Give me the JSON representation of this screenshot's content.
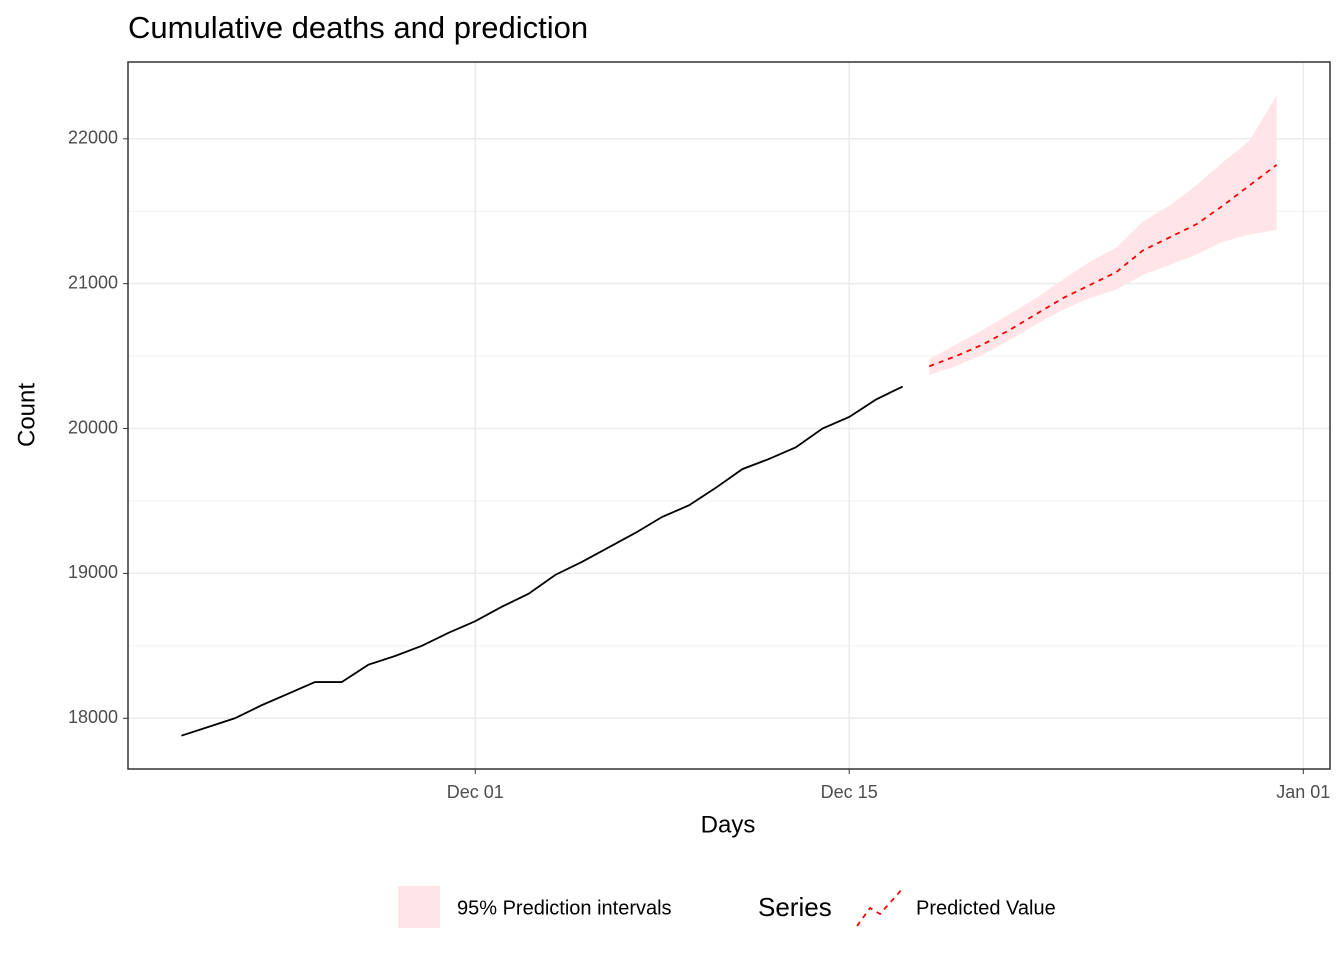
{
  "chart_data": {
    "type": "line",
    "title": "Cumulative deaths and prediction",
    "x_label": "Days",
    "y_label": "Count",
    "xlim": [
      "Nov 18",
      "Jan 02"
    ],
    "xticks": [
      "Dec 01",
      "Dec 15",
      "Jan 01"
    ],
    "ylim": [
      17650,
      22530
    ],
    "yticks": [
      18000,
      19000,
      20000,
      21000,
      22000
    ],
    "yminor": [
      18500,
      19500,
      20500,
      21500
    ],
    "grid": true,
    "legend_position": "bottom",
    "legend_title": "Series",
    "band": {
      "name": "95% Prediction intervals",
      "color": "#ffe4e8",
      "x": [
        "Dec 18",
        "Dec 19",
        "Dec 20",
        "Dec 21",
        "Dec 22",
        "Dec 23",
        "Dec 24",
        "Dec 25",
        "Dec 26",
        "Dec 27",
        "Dec 28",
        "Dec 29",
        "Dec 30",
        "Dec 31"
      ],
      "lower": [
        20370,
        20430,
        20510,
        20610,
        20720,
        20820,
        20900,
        20960,
        21060,
        21130,
        21200,
        21290,
        21340,
        21370
      ],
      "upper": [
        20480,
        20580,
        20680,
        20790,
        20900,
        21030,
        21150,
        21250,
        21430,
        21540,
        21680,
        21840,
        21990,
        22300
      ]
    },
    "series": [
      {
        "color": "#000000",
        "dashed": false,
        "x": [
          "Nov 20",
          "Nov 21",
          "Nov 22",
          "Nov 23",
          "Nov 24",
          "Nov 25",
          "Nov 26",
          "Nov 27",
          "Nov 28",
          "Nov 29",
          "Nov 30",
          "Dec 01",
          "Dec 02",
          "Dec 03",
          "Dec 04",
          "Dec 05",
          "Dec 06",
          "Dec 07",
          "Dec 08",
          "Dec 09",
          "Dec 10",
          "Dec 11",
          "Dec 12",
          "Dec 13",
          "Dec 14",
          "Dec 15",
          "Dec 16",
          "Dec 17"
        ],
        "values": [
          17880,
          17940,
          18000,
          18090,
          18170,
          18250,
          18250,
          18370,
          18430,
          18500,
          18590,
          18670,
          18770,
          18860,
          18990,
          19080,
          19180,
          19280,
          19390,
          19470,
          19590,
          19720,
          19790,
          19870,
          20000,
          20080,
          20200,
          20290
        ]
      },
      {
        "name": "Predicted Value",
        "color": "#ff0000",
        "dashed": true,
        "x": [
          "Dec 18",
          "Dec 19",
          "Dec 20",
          "Dec 21",
          "Dec 22",
          "Dec 23",
          "Dec 24",
          "Dec 25",
          "Dec 26",
          "Dec 27",
          "Dec 28",
          "Dec 29",
          "Dec 30",
          "Dec 31"
        ],
        "values": [
          20430,
          20500,
          20580,
          20680,
          20790,
          20900,
          20990,
          21080,
          21230,
          21320,
          21410,
          21540,
          21680,
          21820
        ]
      }
    ]
  }
}
